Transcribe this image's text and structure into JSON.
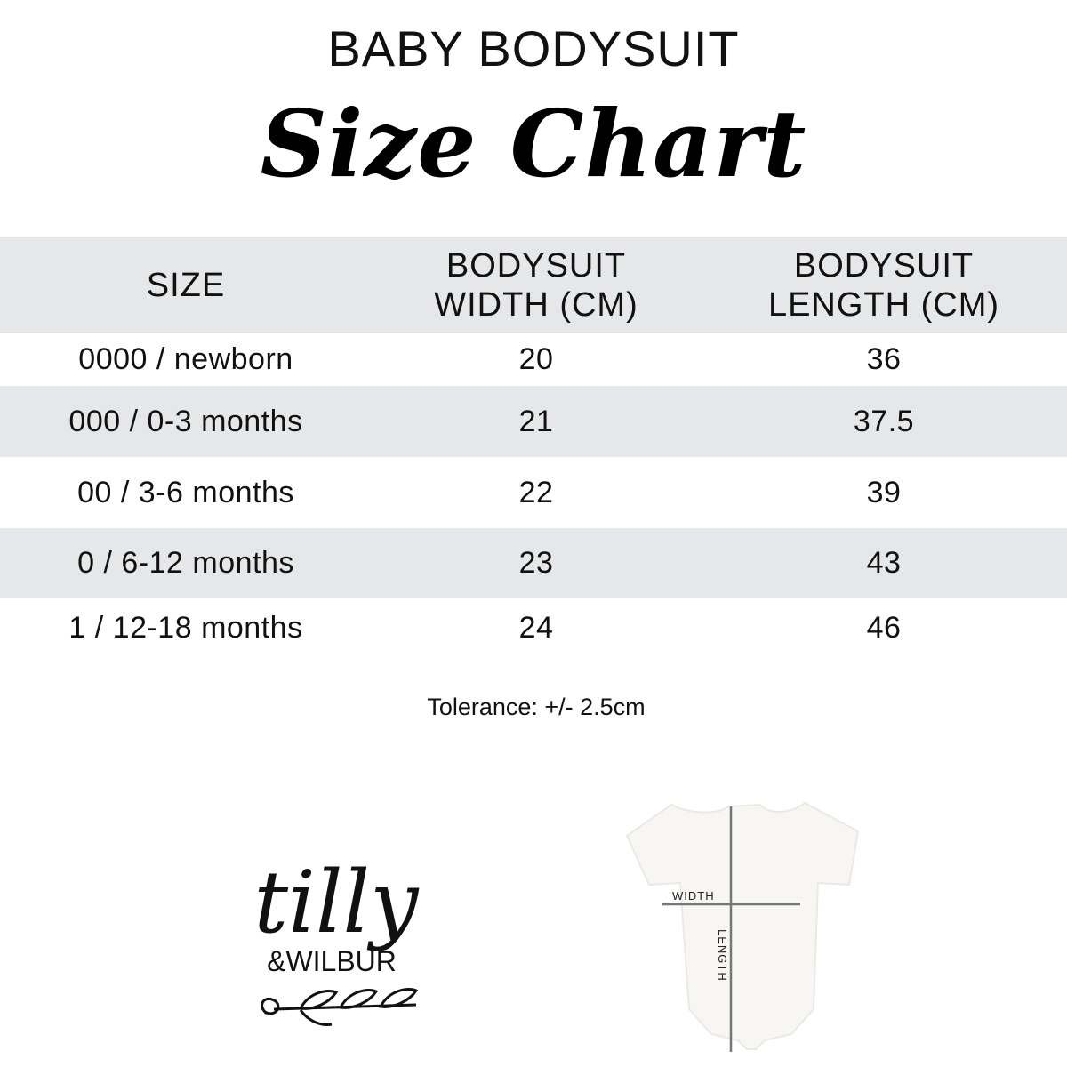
{
  "header": {
    "line1": "BABY BODYSUIT",
    "line2": "Size Chart"
  },
  "table": {
    "columns": [
      "SIZE",
      "BODYSUIT\nWIDTH (CM)",
      "BODYSUIT\nLENGTH (CM)"
    ],
    "rows": [
      [
        "0000 / newborn",
        "20",
        "36"
      ],
      [
        "000 / 0-3 months",
        "21",
        "37.5"
      ],
      [
        "00 / 3-6 months",
        "22",
        "39"
      ],
      [
        "0 / 6-12 months",
        "23",
        "43"
      ],
      [
        "1 / 12-18 months",
        "24",
        "46"
      ]
    ]
  },
  "tolerance": "Tolerance: +/- 2.5cm",
  "logo": {
    "text1": "tilly",
    "text2": "&WILBUR"
  },
  "diagram": {
    "width_label": "WIDTH",
    "length_label": "LENGTH"
  },
  "colors": {
    "stripe": "#e6e7e9",
    "text": "#111111"
  }
}
